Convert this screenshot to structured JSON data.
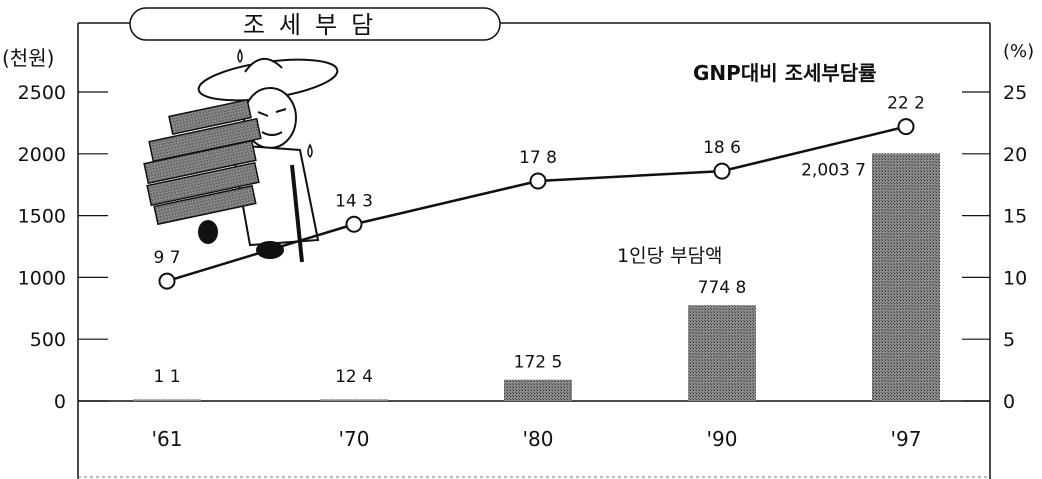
{
  "chart_data": {
    "type": "bar",
    "title": "조세부담",
    "categories": [
      "'61",
      "'70",
      "'80",
      "'90",
      "'97"
    ],
    "bar_series": {
      "name": "1인당 부담액",
      "values": [
        1.1,
        12.4,
        172.5,
        774.8,
        2003.7
      ],
      "labels": [
        "1 1",
        "12 4",
        "172 5",
        "774 8",
        "2,003 7"
      ],
      "axis": "left",
      "color": "#6f6f6f"
    },
    "line_series": {
      "name": "GNP대비 조세부담률",
      "values": [
        9.7,
        14.3,
        17.8,
        18.6,
        22.2
      ],
      "labels": [
        "9 7",
        "14 3",
        "17 8",
        "18 6",
        "22 2"
      ],
      "axis": "right",
      "color": "#111111"
    },
    "y_left": {
      "unit": "(천원)",
      "ticks": [
        "2500",
        "2000",
        "1500",
        "1000",
        "500",
        "0"
      ],
      "ylim": [
        0,
        2500
      ]
    },
    "y_right": {
      "unit": "(%)",
      "ticks": [
        "25",
        "20",
        "15",
        "10",
        "5",
        "0"
      ],
      "ylim": [
        0,
        25
      ]
    },
    "grid": false,
    "illustration": "man-carrying-bundles-icon"
  }
}
